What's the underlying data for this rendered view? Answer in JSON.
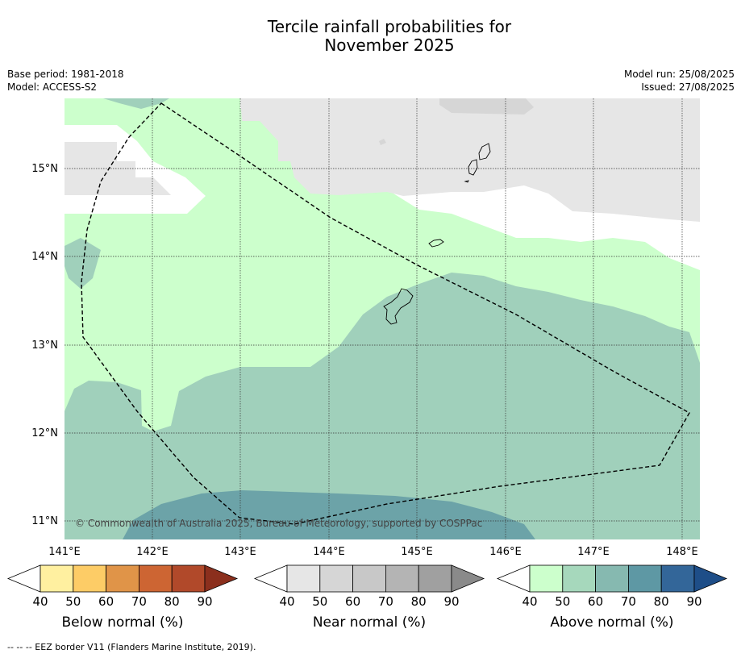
{
  "title": {
    "line1": "Tercile rainfall probabilities for",
    "line2": "November 2025"
  },
  "meta": {
    "base_period": "Base period: 1981-2018",
    "model": "Model: ACCESS-S2",
    "model_run": "Model run: 25/08/2025",
    "issued": "Issued: 27/08/2025"
  },
  "map": {
    "lon_ticks": [
      "141°E",
      "142°E",
      "143°E",
      "144°E",
      "145°E",
      "146°E",
      "147°E",
      "148°E"
    ],
    "lat_ticks": [
      "15°N",
      "14°N",
      "13°N",
      "12°N",
      "11°N"
    ],
    "copyright": "© Commonwealth of Australia 2025, Bureau of Meteorology, supported by COSPPac",
    "eez_border": "EEZ border V11 (Flanders Marine Institute, 2019)"
  },
  "colorbars": [
    {
      "name": "below",
      "title": "Below normal (%)",
      "ticks": [
        "40",
        "50",
        "60",
        "70",
        "80",
        "90"
      ],
      "colors": [
        "#fff0a0",
        "#fdcc66",
        "#e09448",
        "#cd6533",
        "#b1492a",
        "#8b2f1d"
      ]
    },
    {
      "name": "near",
      "title": "Near normal (%)",
      "ticks": [
        "40",
        "50",
        "60",
        "70",
        "80",
        "90"
      ],
      "colors": [
        "#e6e6e6",
        "#d6d6d6",
        "#c8c8c8",
        "#b4b4b4",
        "#a0a0a0",
        "#8a8a8a"
      ]
    },
    {
      "name": "above",
      "title": "Above normal (%)",
      "ticks": [
        "40",
        "50",
        "60",
        "70",
        "80",
        "90"
      ],
      "colors": [
        "#ccffcc",
        "#a6d8bc",
        "#86b9b0",
        "#5e98a4",
        "#336699",
        "#1e4e88"
      ]
    }
  ],
  "colors": {
    "above_40": "#ccffcc",
    "above_50": "#a0d0bb",
    "above_60": "#6ca3a8",
    "near_40": "#e6e6e6",
    "near_50": "#d6d6d6"
  },
  "footnote": "--  --  -- EEZ border V11 (Flanders Marine Institute, 2019)."
}
